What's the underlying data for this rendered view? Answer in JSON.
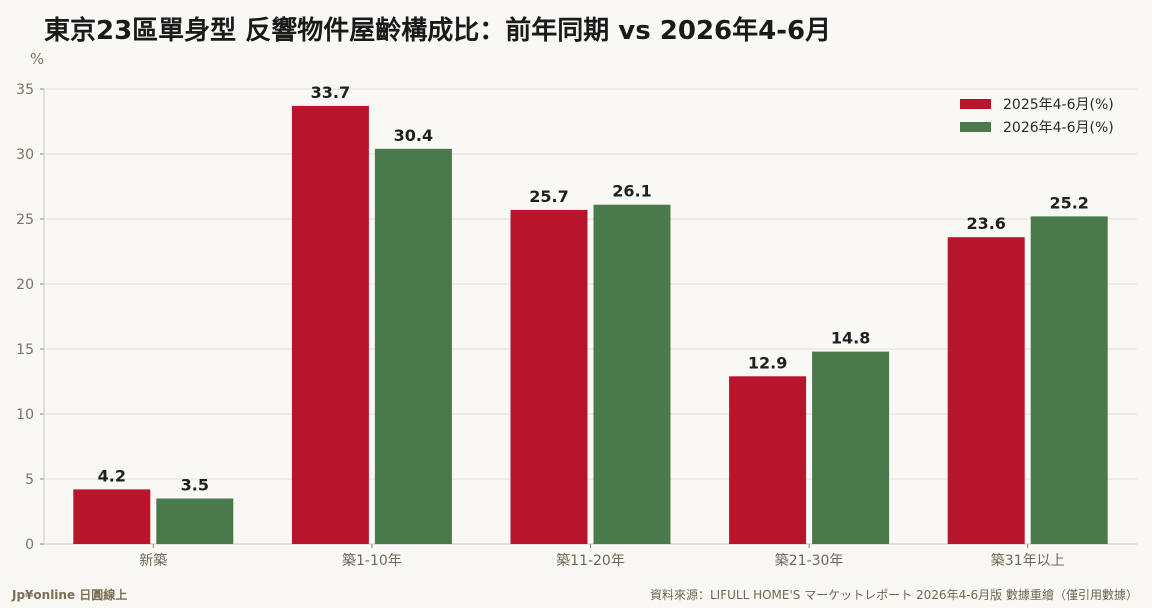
{
  "title": "東京23區單身型 反響物件屋齡構成比：前年同期 vs 2026年4-6月",
  "footer": {
    "brand": "Jp¥online 日圓線上",
    "source": "資料來源：LIFULL HOME'S マーケットレポート 2026年4-6月版 數據重繪（僅引用數據）"
  },
  "colors": {
    "series1": "#b8142c",
    "series2": "#4a7a4c"
  },
  "chart_data": {
    "type": "bar",
    "title": "東京23區單身型 反響物件屋齡構成比：前年同期 vs 2026年4-6月",
    "ylabel": "%",
    "xlabel": "",
    "ylim": [
      0,
      35
    ],
    "yticks": [
      0,
      5,
      10,
      15,
      20,
      25,
      30,
      35
    ],
    "grid": true,
    "legend_position": "top-right",
    "categories": [
      "新築",
      "築1-10年",
      "築11-20年",
      "築21-30年",
      "築31年以上"
    ],
    "series": [
      {
        "name": "2025年4-6月(%)",
        "values": [
          4.2,
          33.7,
          25.7,
          12.9,
          23.6
        ]
      },
      {
        "name": "2026年4-6月(%)",
        "values": [
          3.5,
          30.4,
          26.1,
          14.8,
          25.2
        ]
      }
    ]
  }
}
